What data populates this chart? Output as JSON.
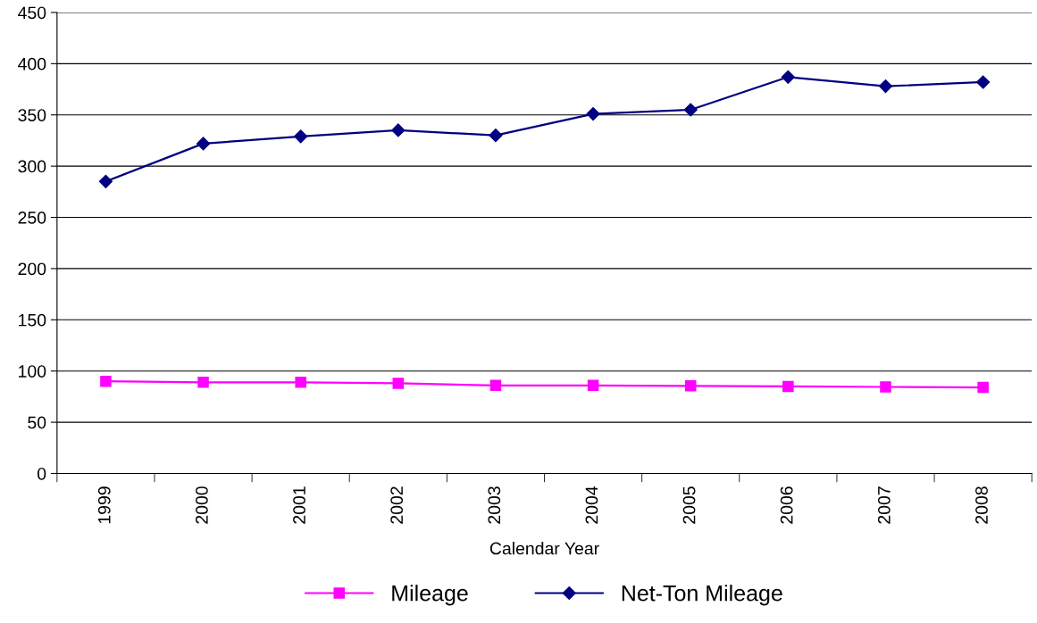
{
  "chart_data": {
    "type": "line",
    "xlabel": "Calendar Year",
    "categories": [
      "1999",
      "2000",
      "2001",
      "2002",
      "2003",
      "2004",
      "2005",
      "2006",
      "2007",
      "2008"
    ],
    "series": [
      {
        "name": "Mileage",
        "color": "#ff00ff",
        "marker": "square",
        "values": [
          90,
          89,
          89,
          88,
          86,
          86,
          85.5,
          85,
          84.5,
          84
        ]
      },
      {
        "name": "Net-Ton Mileage",
        "color": "#000080",
        "marker": "diamond",
        "values": [
          285,
          322,
          329,
          335,
          330,
          351,
          355,
          387,
          378,
          382
        ]
      }
    ],
    "ylim": [
      0,
      450
    ],
    "yticks": [
      0,
      50,
      100,
      150,
      200,
      250,
      300,
      350,
      400,
      450
    ],
    "grid": "y",
    "legend": "bottom",
    "line_style": "solid"
  }
}
